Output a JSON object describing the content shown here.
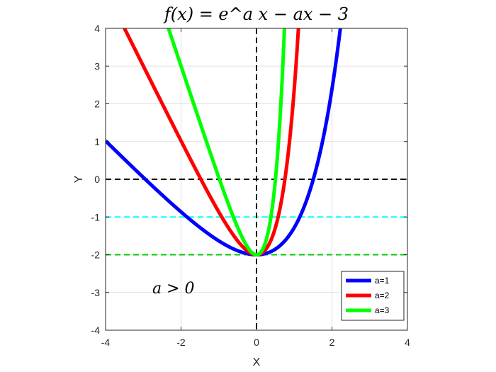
{
  "chart_data": {
    "type": "line",
    "title": "f(x) = e^a x − ax − 3",
    "xlabel": "X",
    "ylabel": "Y",
    "xlim": [
      -4,
      4
    ],
    "ylim": [
      -4,
      4
    ],
    "xticks": [
      -4,
      -2,
      0,
      2,
      4
    ],
    "yticks": [
      -4,
      -3,
      -2,
      -1,
      0,
      1,
      2,
      3,
      4
    ],
    "grid": true,
    "legend_position": "bottom-right",
    "series": [
      {
        "name": "a=1",
        "a": 1,
        "color": "#0000ff"
      },
      {
        "name": "a=2",
        "a": 2,
        "color": "#ff0000"
      },
      {
        "name": "a=3",
        "a": 3,
        "color": "#00ff00"
      }
    ],
    "reference_lines": [
      {
        "orientation": "horizontal",
        "y": 0,
        "color": "#000000",
        "style": "dashed"
      },
      {
        "orientation": "horizontal",
        "y": -1,
        "color": "#00ffff",
        "style": "dashed"
      },
      {
        "orientation": "horizontal",
        "y": -2,
        "color": "#00cc00",
        "style": "dashed"
      },
      {
        "orientation": "vertical",
        "x": 0,
        "color": "#000000",
        "style": "dashed"
      }
    ],
    "annotation": "a > 0"
  }
}
